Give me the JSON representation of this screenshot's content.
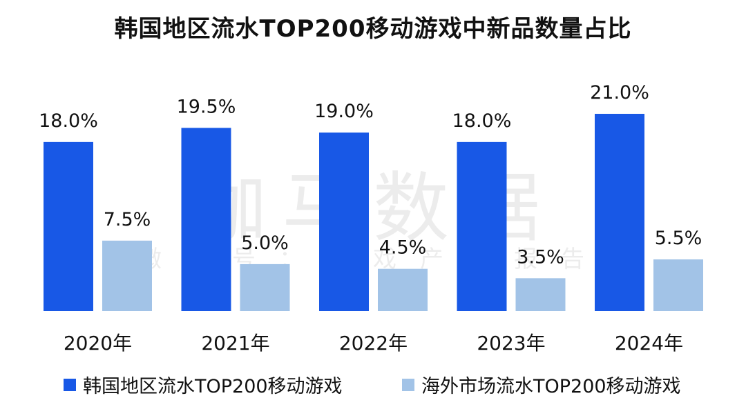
{
  "chart_data": {
    "type": "bar",
    "title": "韩国地区流水TOP200移动游戏中新品数量占比",
    "categories": [
      "2020年",
      "2021年",
      "2022年",
      "2023年",
      "2024年"
    ],
    "series": [
      {
        "name": "韩国地区流水TOP200移动游戏",
        "values": [
          18.0,
          19.5,
          19.0,
          18.0,
          21.0
        ],
        "labels": [
          "18.0%",
          "19.5%",
          "19.0%",
          "18.0%",
          "21.0%"
        ],
        "color": "#1858E6"
      },
      {
        "name": "海外市场流水TOP200移动游戏",
        "values": [
          7.5,
          5.0,
          4.5,
          3.5,
          5.5
        ],
        "labels": [
          "7.5%",
          "5.0%",
          "4.5%",
          "3.5%",
          "5.5%"
        ],
        "color": "#A2C3E7"
      }
    ],
    "ylim": [
      0,
      21.0
    ],
    "xlabel": "",
    "ylabel": ""
  },
  "watermark": {
    "main": "伽马数据",
    "sub": "微信号：游戏产业报告"
  }
}
